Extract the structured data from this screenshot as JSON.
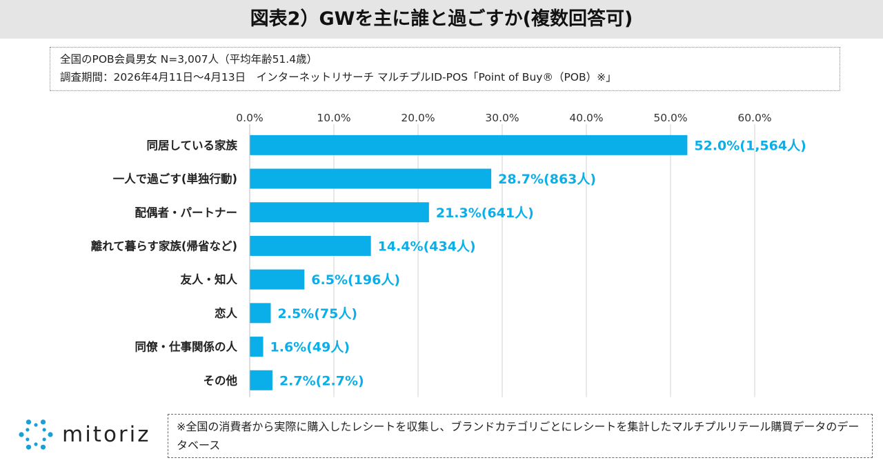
{
  "title": "図表2）GWを主に誰と過ごすか(複数回答可)",
  "info": {
    "line1": "全国のPOB会員男女 N=3,007人（平均年齢51.4歳）",
    "line2": "調査期間：2026年4月11日～4月13日　インターネットリサーチ マルチプルID-POS「Point of Buy®（POB）※」"
  },
  "chart_data": {
    "type": "bar",
    "orientation": "horizontal",
    "categories": [
      "同居している家族",
      "一人で過ごす(単独行動)",
      "配偶者・パートナー",
      "離れて暮らす家族(帰省など)",
      "友人・知人",
      "恋人",
      "同僚・仕事関係の人",
      "その他"
    ],
    "values": [
      52.0,
      28.7,
      21.3,
      14.4,
      6.5,
      2.5,
      1.6,
      2.7
    ],
    "data_labels": [
      "52.0%(1,564人)",
      "28.7%(863人)",
      "21.3%(641人)",
      "14.4%(434人)",
      "6.5%(196人)",
      "2.5%(75人)",
      "1.6%(49人)",
      "2.7%(2.7%)"
    ],
    "xlim": [
      0,
      60
    ],
    "xticks": [
      0,
      10,
      20,
      30,
      40,
      50,
      60
    ],
    "xtick_labels": [
      "0.0%",
      "10.0%",
      "20.0%",
      "30.0%",
      "40.0%",
      "50.0%",
      "60.0%"
    ],
    "axis_position": "top",
    "grid": true,
    "bar_color": "#0aaee8",
    "label_color": "#0aaee8"
  },
  "footnote": "※全国の消費者から実際に購入したレシートを収集し、ブランドカテゴリごとにレシートを集計したマルチプルリテール購買データのデータベース",
  "logo": {
    "text": "mitoriz",
    "icon": "sun-burst-logo-icon",
    "color": "#1a9fd9"
  }
}
